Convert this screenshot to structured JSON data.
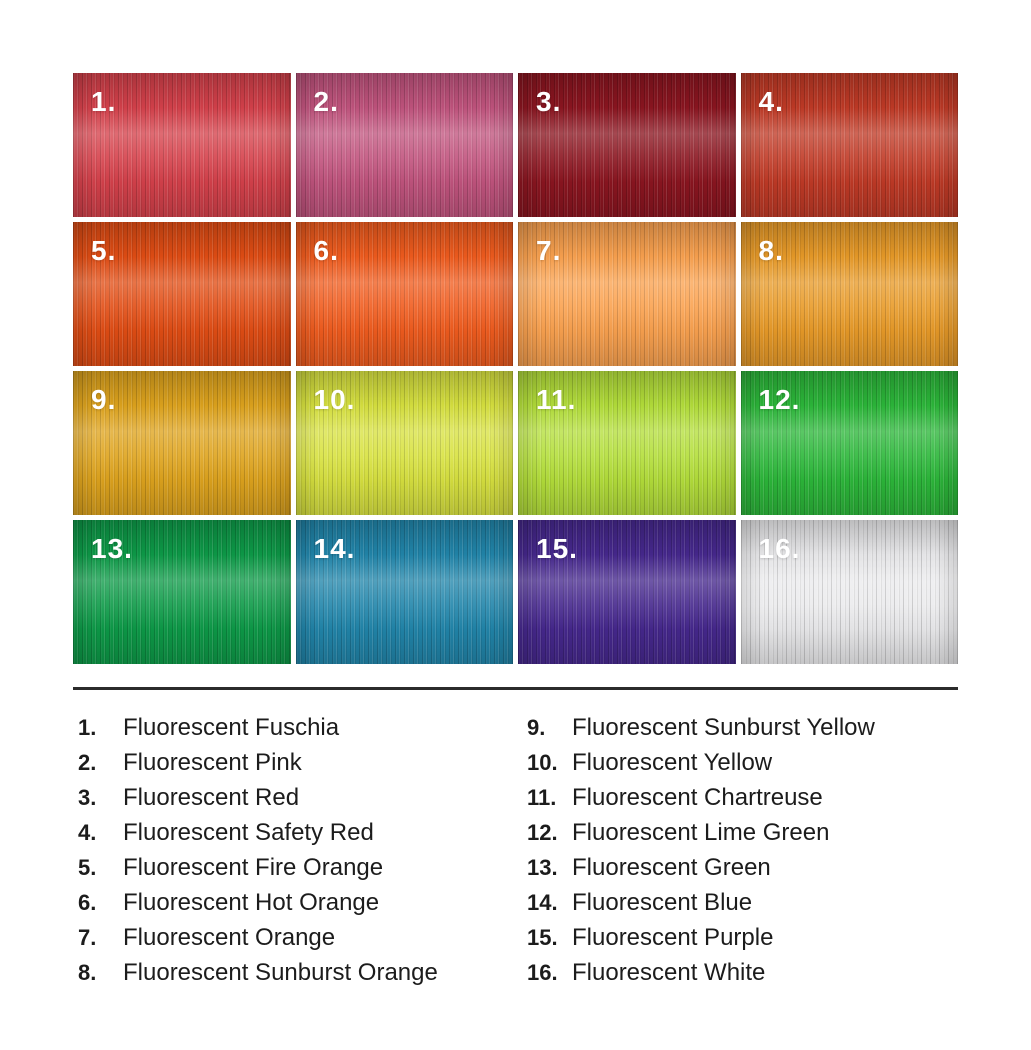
{
  "page": {
    "background": "#ffffff",
    "text_color": "#1c1c1c",
    "divider_color": "#2b2b2b"
  },
  "swatches": [
    {
      "number": "1.",
      "label": "Fluorescent Fuschia",
      "color": "#d6414b"
    },
    {
      "number": "2.",
      "label": "Fluorescent Pink",
      "color": "#c2547e"
    },
    {
      "number": "3.",
      "label": "Fluorescent Red",
      "color": "#8c1520"
    },
    {
      "number": "4.",
      "label": "Fluorescent Safety Red",
      "color": "#c13a26"
    },
    {
      "number": "5.",
      "label": "Fluorescent Fire Orange",
      "color": "#e24d14"
    },
    {
      "number": "6.",
      "label": "Fluorescent Hot Orange",
      "color": "#f15c1e"
    },
    {
      "number": "7.",
      "label": "Fluorescent Orange",
      "color": "#fba24f"
    },
    {
      "number": "8.",
      "label": "Fluorescent Sunburst Orange",
      "color": "#e99b28"
    },
    {
      "number": "9.",
      "label": "Fluorescent Sunburst Yellow",
      "color": "#dfa41d"
    },
    {
      "number": "10.",
      "label": "Fluorescent Yellow",
      "color": "#d8e23f"
    },
    {
      "number": "11.",
      "label": "Fluorescent Chartreuse",
      "color": "#b4df3a"
    },
    {
      "number": "12.",
      "label": "Fluorescent Lime Green",
      "color": "#2cb83a"
    },
    {
      "number": "13.",
      "label": "Fluorescent Green",
      "color": "#0d9b48"
    },
    {
      "number": "14.",
      "label": "Fluorescent Blue",
      "color": "#2186ab"
    },
    {
      "number": "15.",
      "label": "Fluorescent Purple",
      "color": "#46288e"
    },
    {
      "number": "16.",
      "label": "Fluorescent White",
      "color": "#ebebed"
    }
  ],
  "legend": {
    "items_per_column": 8
  }
}
